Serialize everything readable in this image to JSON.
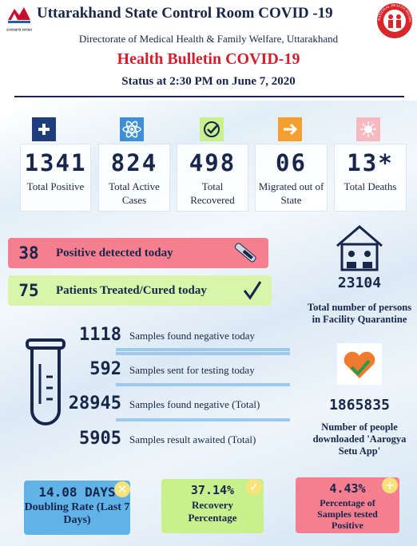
{
  "header": {
    "title": "Uttarakhand State Control Room COVID -19",
    "subtitle": "Directorate of Medical Health & Family Welfare, Uttarakhand",
    "bulletin": "Health Bulletin COVID-19",
    "status": "Status at 2:30 PM on June 7, 2020",
    "emblem_text": "उत्तराखण्ड सरकार",
    "mission_text": "NATIONAL HEALTH MISSION"
  },
  "stats": [
    {
      "value": 1341,
      "label": "Total Positive"
    },
    {
      "value": 824,
      "label": "Total Active Cases"
    },
    {
      "value": 498,
      "label": "Total Recovered"
    },
    {
      "value": "06",
      "label": "Migrated out of State"
    },
    {
      "value": "13*",
      "label": "Total Deaths"
    }
  ],
  "today": [
    {
      "value": 38,
      "label": "Positive detected today"
    },
    {
      "value": 75,
      "label": "Patients Treated/Cured today"
    }
  ],
  "samples": [
    {
      "value": 1118,
      "label": "Samples found negative today"
    },
    {
      "value": 592,
      "label": "Samples sent for testing today"
    },
    {
      "value": 28945,
      "label": "Samples found negative (Total)"
    },
    {
      "value": 5905,
      "label": "Samples result awaited (Total)"
    }
  ],
  "quarantine": {
    "value": 23104,
    "label": "Total number of persons in Facility Quarantine"
  },
  "aarogya": {
    "value": 1865835,
    "label": "Number of people downloaded 'Aarogya Setu App'"
  },
  "rates": [
    {
      "value": "14.08 DAYS",
      "label": "Doubling Rate (Last 7 Days)"
    },
    {
      "value": "37.14%",
      "label": "Recovery Percentage"
    },
    {
      "value": "4.43%",
      "label": "Percentage of Samples tested Positive"
    }
  ]
}
